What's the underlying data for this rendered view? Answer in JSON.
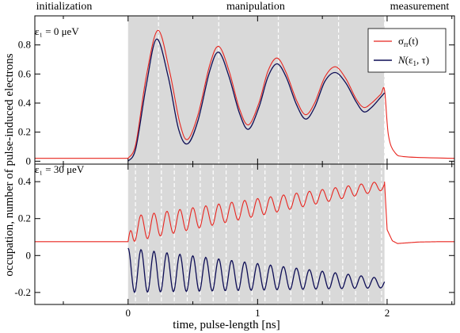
{
  "chart_data": {
    "type": "line",
    "phases": [
      "initialization",
      "manipulation",
      "measurement"
    ],
    "xlabel": "time, pulse-length  [ns]",
    "ylabel": "occupation, number of pulse-induced electrons",
    "xlim": [
      -0.72,
      2.52
    ],
    "xticks": [
      0,
      1,
      2
    ],
    "pulse_window": [
      0.0,
      1.98
    ],
    "colors": {
      "sigma": "#e8251f",
      "N": "#0d0d55",
      "shade": "#d9d9d9",
      "dashed": "#ffffff"
    },
    "legend": [
      {
        "label": "σ_rr(t)",
        "color": "#e8251f"
      },
      {
        "label": "N(ε_1, τ)",
        "color": "#0d0d55"
      }
    ],
    "panels": [
      {
        "annotation": "ε₁ = 0 μeV",
        "ylim": [
          -0.02,
          1.0
        ],
        "yticks": [
          0,
          0.2,
          0.4,
          0.6,
          0.8
        ],
        "dashed_x": [
          0.235,
          0.7,
          1.16,
          1.625,
          1.98
        ],
        "series": [
          {
            "name": "σ_rr(t)",
            "points": [
              [
                -0.72,
                0.02
              ],
              [
                0,
                0.02
              ],
              [
                0.06,
                0.12
              ],
              [
                0.14,
                0.58
              ],
              [
                0.23,
                0.9
              ],
              [
                0.32,
                0.62
              ],
              [
                0.4,
                0.26
              ],
              [
                0.46,
                0.15
              ],
              [
                0.54,
                0.32
              ],
              [
                0.63,
                0.66
              ],
              [
                0.7,
                0.79
              ],
              [
                0.78,
                0.62
              ],
              [
                0.86,
                0.36
              ],
              [
                0.93,
                0.25
              ],
              [
                1.01,
                0.4
              ],
              [
                1.08,
                0.62
              ],
              [
                1.15,
                0.71
              ],
              [
                1.22,
                0.61
              ],
              [
                1.3,
                0.42
              ],
              [
                1.37,
                0.32
              ],
              [
                1.44,
                0.4
              ],
              [
                1.52,
                0.58
              ],
              [
                1.6,
                0.65
              ],
              [
                1.68,
                0.57
              ],
              [
                1.76,
                0.43
              ],
              [
                1.82,
                0.37
              ],
              [
                1.88,
                0.4
              ],
              [
                1.95,
                0.46
              ],
              [
                1.98,
                0.49
              ],
              [
                2.01,
                0.18
              ],
              [
                2.06,
                0.06
              ],
              [
                2.15,
                0.03
              ],
              [
                2.52,
                0.02
              ]
            ]
          },
          {
            "name": "N(ε_1, τ)",
            "points": [
              [
                0,
                0.0
              ],
              [
                0.06,
                0.09
              ],
              [
                0.14,
                0.52
              ],
              [
                0.22,
                0.84
              ],
              [
                0.31,
                0.58
              ],
              [
                0.39,
                0.22
              ],
              [
                0.46,
                0.12
              ],
              [
                0.54,
                0.28
              ],
              [
                0.63,
                0.62
              ],
              [
                0.7,
                0.75
              ],
              [
                0.78,
                0.58
              ],
              [
                0.86,
                0.33
              ],
              [
                0.93,
                0.22
              ],
              [
                1.01,
                0.37
              ],
              [
                1.08,
                0.58
              ],
              [
                1.15,
                0.67
              ],
              [
                1.22,
                0.58
              ],
              [
                1.3,
                0.39
              ],
              [
                1.37,
                0.29
              ],
              [
                1.44,
                0.37
              ],
              [
                1.52,
                0.55
              ],
              [
                1.6,
                0.61
              ],
              [
                1.68,
                0.54
              ],
              [
                1.76,
                0.41
              ],
              [
                1.82,
                0.34
              ],
              [
                1.88,
                0.37
              ],
              [
                1.95,
                0.44
              ],
              [
                1.98,
                0.47
              ]
            ]
          }
        ]
      },
      {
        "annotation": "ε₁ = 30 μeV",
        "ylim": [
          -0.265,
          0.495
        ],
        "yticks": [
          -0.2,
          0,
          0.2,
          0.4
        ],
        "dashed_x": [
          0.057,
          0.157,
          0.257,
          0.357,
          0.457,
          0.557,
          0.657,
          0.757,
          0.857,
          0.957,
          1.057,
          1.157,
          1.257,
          1.357,
          1.457,
          1.557,
          1.657,
          1.757,
          1.857,
          1.957
        ],
        "series": [
          {
            "name": "σ_rr(t)",
            "baseline": 0.075,
            "tail_x": [
              1.98,
              2.0,
              2.04,
              2.08,
              2.14,
              2.24,
              2.4,
              2.52
            ],
            "tail_y": [
              0.4,
              0.14,
              0.08,
              0.065,
              0.068,
              0.073,
              0.075,
              0.075
            ],
            "mean_start": 0.14,
            "mean_end": 0.38,
            "amp_start": 0.07,
            "amp_end": 0.025,
            "period": 0.1
          },
          {
            "name": "N(ε_1, τ)",
            "mean_start": -0.08,
            "mean_end": -0.15,
            "amp_start": 0.12,
            "amp_end": 0.025,
            "period": 0.1
          }
        ]
      }
    ]
  }
}
